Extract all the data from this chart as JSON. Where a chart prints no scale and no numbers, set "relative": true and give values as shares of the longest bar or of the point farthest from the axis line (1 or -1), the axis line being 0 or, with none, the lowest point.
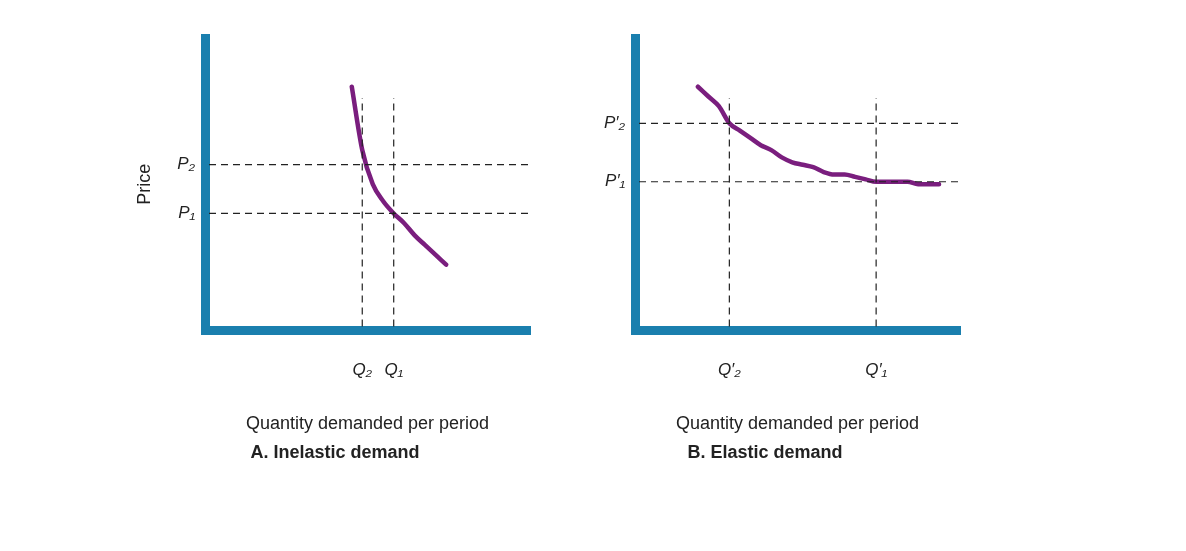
{
  "chart_data": [
    {
      "type": "line",
      "title": "A. Inelastic demand",
      "xlabel": "Quantity demanded per period",
      "ylabel": "Price",
      "relative": true,
      "categories": [
        null,
        null,
        null,
        null,
        null,
        null,
        null,
        null,
        null,
        null,
        null,
        null,
        null,
        null,
        null,
        "Q₂",
        null,
        null,
        "Q₁",
        null,
        null,
        null,
        null,
        null,
        null,
        null,
        null,
        null,
        null,
        null,
        null,
        null
      ],
      "series": [
        {
          "color": "#7a1e7e",
          "values": [
            null,
            null,
            null,
            null,
            null,
            null,
            null,
            null,
            null,
            null,
            null,
            null,
            null,
            null,
            1,
            0.74,
            0.6,
            0.53,
            0.48,
            0.44,
            0.39,
            0.35,
            0.31,
            0.27,
            null,
            null,
            null,
            null,
            null,
            null,
            null,
            null
          ]
        }
      ],
      "ref_lines": [
        {
          "axis": "y",
          "value": 0.68,
          "label": "P₂",
          "color": "#222222",
          "line_style": "dashed"
        },
        {
          "axis": "y",
          "value": 0.48,
          "label": "P₁",
          "color": "#222222",
          "line_style": "dashed"
        },
        {
          "axis": "x",
          "value": "Q₂",
          "color": "#222222",
          "line_style": "dashed"
        },
        {
          "axis": "x",
          "value": "Q₁",
          "color": "#222222",
          "line_style": "dashed"
        }
      ]
    },
    {
      "type": "line",
      "title": "B. Elastic demand",
      "xlabel": "Quantity demanded per period",
      "relative": true,
      "categories": [
        null,
        null,
        null,
        null,
        null,
        null,
        null,
        null,
        null,
        "Q′₂",
        null,
        null,
        null,
        null,
        null,
        null,
        null,
        null,
        null,
        null,
        null,
        null,
        null,
        "Q′₁",
        null,
        null,
        null,
        null,
        null,
        null,
        null,
        null
      ],
      "series": [
        {
          "color": "#7a1e7e",
          "values": [
            null,
            null,
            null,
            null,
            null,
            null,
            1,
            0.96,
            0.92,
            0.85,
            0.82,
            0.79,
            0.76,
            0.74,
            0.71,
            0.69,
            0.68,
            0.67,
            0.65,
            0.64,
            0.64,
            0.63,
            0.62,
            0.61,
            0.61,
            0.61,
            0.61,
            0.6,
            0.6,
            0.6,
            null,
            null
          ]
        }
      ],
      "ref_lines": [
        {
          "axis": "y",
          "value": 0.85,
          "label": "P′₂",
          "color": "#222222",
          "line_style": "dashed"
        },
        {
          "axis": "y",
          "value": 0.61,
          "label": "P′₁",
          "color": "#222222",
          "line_style": "dashed"
        },
        {
          "axis": "x",
          "value": "Q′₂",
          "color": "#222222",
          "line_style": "dashed"
        },
        {
          "axis": "x",
          "value": "Q′₁",
          "color": "#222222",
          "line_style": "dashed"
        }
      ]
    }
  ]
}
